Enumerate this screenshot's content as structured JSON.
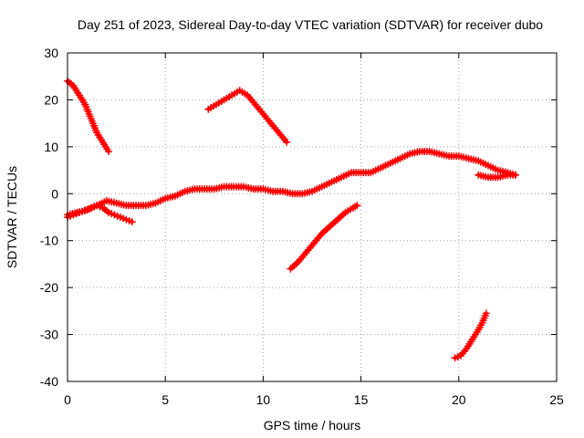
{
  "chart_data": {
    "type": "scatter",
    "title": "Day 251 of 2023, Sidereal Day-to-day VTEC variation (SDTVAR) for receiver dubo",
    "xlabel": "GPS time / hours",
    "ylabel": "SDTVAR / TECUs",
    "xlim": [
      0,
      25
    ],
    "ylim": [
      -40,
      30
    ],
    "x_ticks": [
      0,
      5,
      10,
      15,
      20,
      25
    ],
    "y_ticks": [
      -40,
      -30,
      -20,
      -10,
      0,
      10,
      20,
      30
    ],
    "grid": true,
    "legend": "none",
    "marker": "plus",
    "series_color": "#ff0000",
    "series": [
      {
        "name": "arc-1",
        "x": [
          0.0,
          0.3,
          0.6,
          0.9,
          1.2,
          1.5,
          1.8,
          2.1
        ],
        "y": [
          24,
          23,
          21,
          19,
          16,
          13,
          11,
          9
        ]
      },
      {
        "name": "arc-2",
        "x": [
          7.2,
          7.6,
          8.0,
          8.4,
          8.8,
          9.2,
          9.6,
          10.0,
          10.4,
          10.8,
          11.2
        ],
        "y": [
          18,
          19,
          20,
          21,
          22,
          21,
          19,
          17,
          15,
          13,
          11
        ]
      },
      {
        "name": "arc-3",
        "x": [
          0.0,
          0.3,
          0.6,
          0.9,
          1.2,
          1.5,
          1.8,
          2.1,
          2.4,
          2.7,
          3.0,
          3.3
        ],
        "y": [
          -5,
          -4.5,
          -4,
          -3.5,
          -3,
          -2.5,
          -3,
          -4,
          -4.5,
          -5,
          -5.5,
          -6
        ]
      },
      {
        "name": "arc-4",
        "x": [
          0.0,
          0.5,
          1.0,
          1.5,
          2.0,
          2.5,
          3.0,
          3.5,
          4.0,
          4.5,
          5.0,
          5.5,
          6.0,
          6.5,
          7.0,
          7.5,
          8.0,
          8.5,
          9.0,
          9.5,
          10.0,
          10.5,
          11.0,
          11.5,
          12.0,
          12.5,
          13.0,
          13.5,
          14.0,
          14.5,
          15.0,
          15.5,
          16.0,
          16.5,
          17.0,
          17.5,
          18.0,
          18.5,
          19.0,
          19.5,
          20.0,
          20.5,
          21.0,
          21.5,
          22.0,
          22.5,
          22.9
        ],
        "y": [
          -4.5,
          -4,
          -3.5,
          -2.5,
          -1.5,
          -2,
          -2.5,
          -2.5,
          -2.5,
          -2,
          -1,
          -0.5,
          0.5,
          1,
          1,
          1,
          1.5,
          1.5,
          1.5,
          1,
          1,
          0.5,
          0.5,
          0,
          0,
          0.5,
          1.5,
          2.5,
          3.5,
          4.5,
          4.5,
          4.5,
          5.5,
          6.5,
          7.5,
          8.5,
          9,
          9,
          8.5,
          8,
          8,
          7.5,
          7,
          6,
          5,
          4.5,
          4
        ]
      },
      {
        "name": "arc-5",
        "x": [
          21.0,
          21.5,
          22.0,
          22.5,
          22.9
        ],
        "y": [
          4,
          3.5,
          3.5,
          4,
          4
        ]
      },
      {
        "name": "arc-6",
        "x": [
          11.4,
          11.8,
          12.2,
          12.6,
          13.0,
          13.4,
          13.8,
          14.2,
          14.6,
          14.8
        ],
        "y": [
          -16,
          -14.5,
          -12.5,
          -10.5,
          -8.5,
          -7,
          -5.5,
          -4,
          -3,
          -2.5
        ]
      },
      {
        "name": "arc-7",
        "x": [
          19.8,
          20.1,
          20.4,
          20.7,
          21.0,
          21.2,
          21.4
        ],
        "y": [
          -35,
          -34.5,
          -33,
          -31,
          -29,
          -27.5,
          -25.5
        ]
      }
    ]
  }
}
